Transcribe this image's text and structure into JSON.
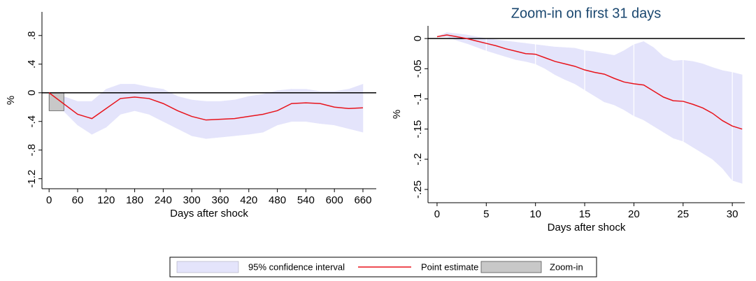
{
  "chart_data": [
    {
      "type": "line",
      "x_label": "Days after shock",
      "y_label": "%",
      "xlim": [
        -15,
        688
      ],
      "ylim": [
        -1.34,
        1.13
      ],
      "xticks": [
        0,
        60,
        120,
        180,
        240,
        300,
        360,
        420,
        480,
        540,
        600,
        660
      ],
      "yticks": [
        {
          "value": 0.8,
          "label": ".8"
        },
        {
          "value": 0.4,
          "label": ".4"
        },
        0,
        {
          "value": -0.4,
          "label": "-.4"
        },
        {
          "value": -0.8,
          "label": "-.8"
        },
        {
          "value": -1.2,
          "label": "-1.2"
        }
      ],
      "refline": 0,
      "grid": false,
      "x": [
        0,
        30,
        60,
        90,
        120,
        150,
        180,
        210,
        240,
        270,
        300,
        330,
        360,
        390,
        420,
        450,
        480,
        510,
        540,
        570,
        600,
        630,
        660
      ],
      "series": [
        {
          "name": "95% confidence interval",
          "kind": "band",
          "color": "#e4e4fb",
          "upper": [
            0,
            -0.05,
            -0.12,
            -0.12,
            0.05,
            0.12,
            0.12,
            0.08,
            0.05,
            -0.05,
            -0.1,
            -0.12,
            -0.12,
            -0.1,
            -0.05,
            -0.02,
            0.03,
            0.05,
            0.05,
            0.02,
            0.02,
            0.05,
            0.12
          ],
          "lower": [
            0,
            -0.25,
            -0.45,
            -0.58,
            -0.48,
            -0.3,
            -0.25,
            -0.3,
            -0.4,
            -0.5,
            -0.6,
            -0.64,
            -0.62,
            -0.6,
            -0.58,
            -0.55,
            -0.45,
            -0.4,
            -0.4,
            -0.43,
            -0.45,
            -0.5,
            -0.55
          ]
        },
        {
          "name": "Point estimate",
          "kind": "line",
          "color": "#e8141c",
          "values": [
            0,
            -0.15,
            -0.3,
            -0.36,
            -0.22,
            -0.08,
            -0.06,
            -0.08,
            -0.15,
            -0.25,
            -0.33,
            -0.38,
            -0.37,
            -0.36,
            -0.33,
            -0.3,
            -0.25,
            -0.15,
            -0.14,
            -0.15,
            -0.2,
            -0.22,
            -0.21
          ]
        }
      ],
      "zoom_box": {
        "name": "Zoom-in",
        "color": "#c8c8c8",
        "xlim": [
          0,
          31
        ],
        "ylim": [
          -0.25,
          0
        ]
      }
    },
    {
      "type": "line",
      "title": "Zoom-in on first 31 days",
      "x_label": "Days after shock",
      "y_label": "%",
      "xlim": [
        -0.92,
        31.27
      ],
      "ylim": [
        -0.272,
        0.021
      ],
      "xticks": [
        0,
        5,
        10,
        15,
        20,
        25,
        30
      ],
      "yticks": [
        0,
        {
          "value": -0.05,
          "label": "-.05"
        },
        {
          "value": -0.1,
          "label": "-.1"
        },
        {
          "value": -0.15,
          "label": "-.15"
        },
        {
          "value": -0.2,
          "label": "-.2"
        },
        {
          "value": -0.25,
          "label": "-.25"
        }
      ],
      "refline": 0,
      "grid": true,
      "x": [
        0,
        1,
        2,
        3,
        4,
        5,
        6,
        7,
        8,
        9,
        10,
        11,
        12,
        13,
        14,
        15,
        16,
        17,
        18,
        19,
        20,
        21,
        22,
        23,
        24,
        25,
        26,
        27,
        28,
        29,
        30,
        31
      ],
      "series": [
        {
          "kind": "band",
          "color": "#e4e4fb",
          "upper": [
            0.003,
            0.01,
            0.008,
            0.006,
            0.003,
            0.0,
            -0.002,
            -0.004,
            -0.006,
            -0.008,
            -0.01,
            -0.012,
            -0.014,
            -0.015,
            -0.016,
            -0.02,
            -0.022,
            -0.025,
            -0.028,
            -0.02,
            -0.01,
            -0.005,
            -0.015,
            -0.03,
            -0.037,
            -0.036,
            -0.038,
            -0.042,
            -0.048,
            -0.053,
            -0.056,
            -0.06
          ],
          "lower": [
            0.003,
            0.003,
            -0.003,
            -0.008,
            -0.014,
            -0.02,
            -0.025,
            -0.03,
            -0.035,
            -0.038,
            -0.042,
            -0.05,
            -0.06,
            -0.068,
            -0.075,
            -0.085,
            -0.095,
            -0.105,
            -0.11,
            -0.118,
            -0.128,
            -0.135,
            -0.145,
            -0.155,
            -0.165,
            -0.17,
            -0.18,
            -0.19,
            -0.2,
            -0.215,
            -0.235,
            -0.24
          ]
        },
        {
          "kind": "line",
          "color": "#e8141c",
          "values": [
            0.003,
            0.006,
            0.003,
            0.0,
            -0.004,
            -0.008,
            -0.012,
            -0.017,
            -0.021,
            -0.025,
            -0.026,
            -0.032,
            -0.038,
            -0.042,
            -0.046,
            -0.052,
            -0.056,
            -0.059,
            -0.066,
            -0.072,
            -0.075,
            -0.077,
            -0.087,
            -0.097,
            -0.103,
            -0.104,
            -0.109,
            -0.115,
            -0.124,
            -0.136,
            -0.145,
            -0.15
          ]
        }
      ]
    }
  ]
}
